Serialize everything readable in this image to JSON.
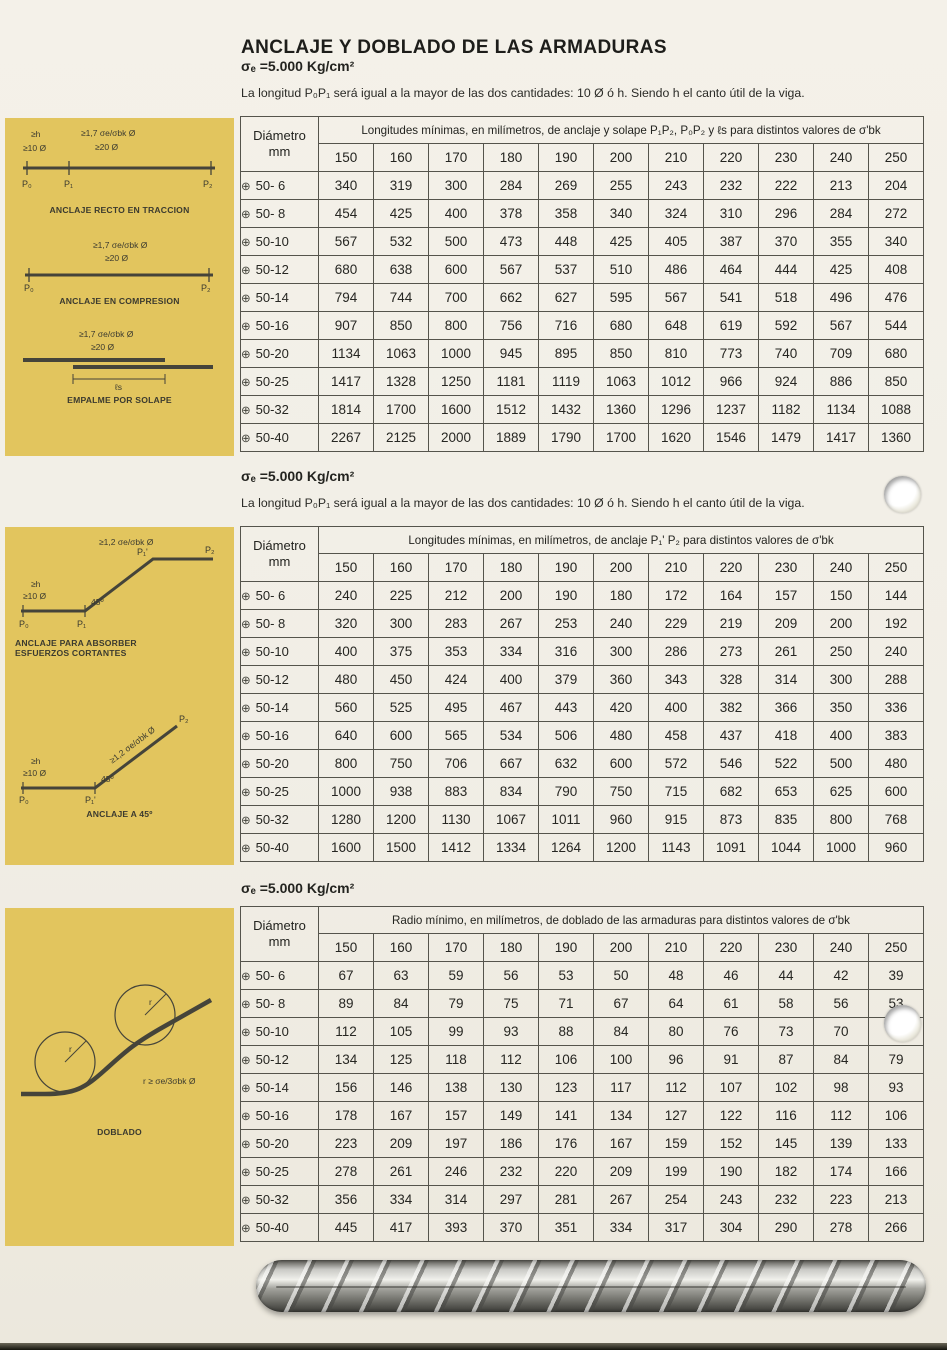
{
  "page": {
    "title": "ANCLAJE Y DOBLADO DE LAS ARMADURAS",
    "colors": {
      "paper": "#f1eee6",
      "panel_yellow": "#e2c55e",
      "table_line": "#55544c"
    }
  },
  "sections": [
    {
      "sigma": "σₑ =5.000 Kg/cm²",
      "intro": "La longitud P₀P₁ será igual a la mayor de las dos cantidades: 10 Ø ó h. Siendo h el canto útil de la viga.",
      "table": {
        "corner_line1": "Diámetro",
        "corner_line2": "mm",
        "header": "Longitudes mínimas, en milímetros, de anclaje y solape P₁P₂, P₀P₂ y ℓs para distintos valores de  σ'bk",
        "columns": [
          "150",
          "160",
          "170",
          "180",
          "190",
          "200",
          "210",
          "220",
          "230",
          "240",
          "250"
        ],
        "row_icon": "⊕",
        "rows": [
          {
            "label": "50- 6",
            "values": [
              "340",
              "319",
              "300",
              "284",
              "269",
              "255",
              "243",
              "232",
              "222",
              "213",
              "204"
            ]
          },
          {
            "label": "50- 8",
            "values": [
              "454",
              "425",
              "400",
              "378",
              "358",
              "340",
              "324",
              "310",
              "296",
              "284",
              "272"
            ]
          },
          {
            "label": "50-10",
            "values": [
              "567",
              "532",
              "500",
              "473",
              "448",
              "425",
              "405",
              "387",
              "370",
              "355",
              "340"
            ]
          },
          {
            "label": "50-12",
            "values": [
              "680",
              "638",
              "600",
              "567",
              "537",
              "510",
              "486",
              "464",
              "444",
              "425",
              "408"
            ]
          },
          {
            "label": "50-14",
            "values": [
              "794",
              "744",
              "700",
              "662",
              "627",
              "595",
              "567",
              "541",
              "518",
              "496",
              "476"
            ]
          },
          {
            "label": "50-16",
            "values": [
              "907",
              "850",
              "800",
              "756",
              "716",
              "680",
              "648",
              "619",
              "592",
              "567",
              "544"
            ]
          },
          {
            "label": "50-20",
            "values": [
              "1134",
              "1063",
              "1000",
              "945",
              "895",
              "850",
              "810",
              "773",
              "740",
              "709",
              "680"
            ]
          },
          {
            "label": "50-25",
            "values": [
              "1417",
              "1328",
              "1250",
              "1181",
              "1119",
              "1063",
              "1012",
              "966",
              "924",
              "886",
              "850"
            ]
          },
          {
            "label": "50-32",
            "values": [
              "1814",
              "1700",
              "1600",
              "1512",
              "1432",
              "1360",
              "1296",
              "1237",
              "1182",
              "1134",
              "1088"
            ]
          },
          {
            "label": "50-40",
            "values": [
              "2267",
              "2125",
              "2000",
              "1889",
              "1790",
              "1700",
              "1620",
              "1546",
              "1479",
              "1417",
              "1360"
            ]
          }
        ]
      }
    },
    {
      "sigma": "σₑ =5.000 Kg/cm²",
      "intro": "La longitud P₀P₁ será igual a la mayor de las dos cantidades: 10 Ø ó h. Siendo h el canto útil de la viga.",
      "table": {
        "corner_line1": "Diámetro",
        "corner_line2": "mm",
        "header": "Longitudes mínimas, en milímetros, de anclaje P₁' P₂ para distintos valores de  σ'bk",
        "columns": [
          "150",
          "160",
          "170",
          "180",
          "190",
          "200",
          "210",
          "220",
          "230",
          "240",
          "250"
        ],
        "row_icon": "⊕",
        "rows": [
          {
            "label": "50- 6",
            "values": [
              "240",
              "225",
              "212",
              "200",
              "190",
              "180",
              "172",
              "164",
              "157",
              "150",
              "144"
            ]
          },
          {
            "label": "50- 8",
            "values": [
              "320",
              "300",
              "283",
              "267",
              "253",
              "240",
              "229",
              "219",
              "209",
              "200",
              "192"
            ]
          },
          {
            "label": "50-10",
            "values": [
              "400",
              "375",
              "353",
              "334",
              "316",
              "300",
              "286",
              "273",
              "261",
              "250",
              "240"
            ]
          },
          {
            "label": "50-12",
            "values": [
              "480",
              "450",
              "424",
              "400",
              "379",
              "360",
              "343",
              "328",
              "314",
              "300",
              "288"
            ]
          },
          {
            "label": "50-14",
            "values": [
              "560",
              "525",
              "495",
              "467",
              "443",
              "420",
              "400",
              "382",
              "366",
              "350",
              "336"
            ]
          },
          {
            "label": "50-16",
            "values": [
              "640",
              "600",
              "565",
              "534",
              "506",
              "480",
              "458",
              "437",
              "418",
              "400",
              "383"
            ]
          },
          {
            "label": "50-20",
            "values": [
              "800",
              "750",
              "706",
              "667",
              "632",
              "600",
              "572",
              "546",
              "522",
              "500",
              "480"
            ]
          },
          {
            "label": "50-25",
            "values": [
              "1000",
              "938",
              "883",
              "834",
              "790",
              "750",
              "715",
              "682",
              "653",
              "625",
              "600"
            ]
          },
          {
            "label": "50-32",
            "values": [
              "1280",
              "1200",
              "1130",
              "1067",
              "1011",
              "960",
              "915",
              "873",
              "835",
              "800",
              "768"
            ]
          },
          {
            "label": "50-40",
            "values": [
              "1600",
              "1500",
              "1412",
              "1334",
              "1264",
              "1200",
              "1143",
              "1091",
              "1044",
              "1000",
              "960"
            ]
          }
        ]
      }
    },
    {
      "sigma": "σₑ =5.000 Kg/cm²",
      "intro": "",
      "table": {
        "corner_line1": "Diámetro",
        "corner_line2": "mm",
        "header": "Radio mínimo, en milímetros, de doblado de las armaduras para distintos valores de  σ'bk",
        "columns": [
          "150",
          "160",
          "170",
          "180",
          "190",
          "200",
          "210",
          "220",
          "230",
          "240",
          "250"
        ],
        "row_icon": "⊕",
        "rows": [
          {
            "label": "50- 6",
            "values": [
              "67",
              "63",
              "59",
              "56",
              "53",
              "50",
              "48",
              "46",
              "44",
              "42",
              "39"
            ]
          },
          {
            "label": "50- 8",
            "values": [
              "89",
              "84",
              "79",
              "75",
              "71",
              "67",
              "64",
              "61",
              "58",
              "56",
              "53"
            ]
          },
          {
            "label": "50-10",
            "values": [
              "112",
              "105",
              "99",
              "93",
              "88",
              "84",
              "80",
              "76",
              "73",
              "70",
              "66"
            ]
          },
          {
            "label": "50-12",
            "values": [
              "134",
              "125",
              "118",
              "112",
              "106",
              "100",
              "96",
              "91",
              "87",
              "84",
              "79"
            ]
          },
          {
            "label": "50-14",
            "values": [
              "156",
              "146",
              "138",
              "130",
              "123",
              "117",
              "112",
              "107",
              "102",
              "98",
              "93"
            ]
          },
          {
            "label": "50-16",
            "values": [
              "178",
              "167",
              "157",
              "149",
              "141",
              "134",
              "127",
              "122",
              "116",
              "112",
              "106"
            ]
          },
          {
            "label": "50-20",
            "values": [
              "223",
              "209",
              "197",
              "186",
              "176",
              "167",
              "159",
              "152",
              "145",
              "139",
              "133"
            ]
          },
          {
            "label": "50-25",
            "values": [
              "278",
              "261",
              "246",
              "232",
              "220",
              "209",
              "199",
              "190",
              "182",
              "174",
              "166"
            ]
          },
          {
            "label": "50-32",
            "values": [
              "356",
              "334",
              "314",
              "297",
              "281",
              "267",
              "254",
              "243",
              "232",
              "223",
              "213"
            ]
          },
          {
            "label": "50-40",
            "values": [
              "445",
              "417",
              "393",
              "370",
              "351",
              "334",
              "317",
              "304",
              "290",
              "278",
              "266"
            ]
          }
        ]
      }
    }
  ],
  "diagrams": {
    "panel1": {
      "d1": {
        "caption": "ANCLAJE RECTO EN TRACCION",
        "lh": "≥h",
        "l10": "≥10 Ø",
        "l17": "≥1,7 σe/σbk Ø",
        "l20": "≥20 Ø",
        "p0": "P₀",
        "p1": "P₁",
        "p2": "P₂"
      },
      "d2": {
        "caption": "ANCLAJE EN COMPRESION",
        "l17": "≥1,7 σe/σbk Ø",
        "l20": "≥20 Ø",
        "p0": "P₀",
        "p2": "P₂"
      },
      "d3": {
        "caption": "EMPALME POR SOLAPE",
        "l17": "≥1,7 σe/σbk Ø",
        "l20": "≥20 Ø",
        "ls": "ℓs"
      }
    },
    "panel2": {
      "d1": {
        "caption": "ANCLAJE PARA ABSORBER ESFUERZOS CORTANTES",
        "lh": "≥h",
        "l10": "≥10 Ø",
        "l12": "≥1,2 σe/σbk Ø",
        "angle": "45º",
        "p0": "P₀",
        "p1": "P₁",
        "p1p": "P₁'",
        "p2": "P₂"
      },
      "d2": {
        "caption": "ANCLAJE A 45º",
        "lh": "≥h",
        "l10": "≥10 Ø",
        "l12": "≥1,2 σe/σbk Ø",
        "angle": "45º",
        "p0": "P₀",
        "p1p": "P₁'",
        "p2": "P₂"
      }
    },
    "panel3": {
      "d1": {
        "caption": "DOBLADO",
        "r": "r",
        "formula": "r ≥ σe/3σbk Ø"
      }
    }
  }
}
